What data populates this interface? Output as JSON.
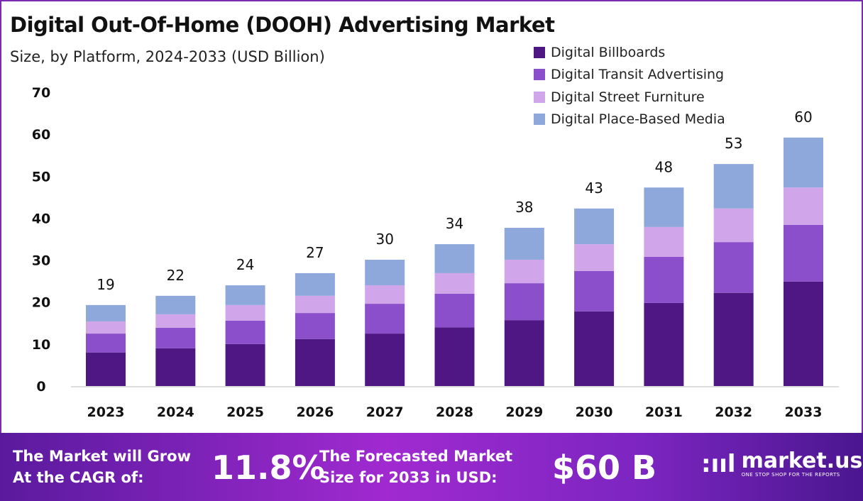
{
  "chart_data": {
    "type": "bar",
    "stacked": true,
    "title": "Digital Out-Of-Home (DOOH) Advertising Market",
    "subtitle": "Size, by Platform, 2024-2033 (USD Billion)",
    "categories": [
      "2023",
      "2024",
      "2025",
      "2026",
      "2027",
      "2028",
      "2029",
      "2030",
      "2031",
      "2032",
      "2033"
    ],
    "series": [
      {
        "name": "Digital Billboards",
        "color": "#4f1784",
        "values": [
          8.0,
          9.0,
          10.0,
          11.2,
          12.5,
          14.0,
          15.7,
          17.8,
          19.8,
          22.2,
          24.9
        ]
      },
      {
        "name": "Digital Transit Advertising",
        "color": "#8b4fcb",
        "values": [
          4.5,
          4.9,
          5.6,
          6.2,
          7.1,
          8.0,
          8.8,
          9.6,
          11.0,
          12.1,
          13.5
        ]
      },
      {
        "name": "Digital Street Furniture",
        "color": "#d0a5ea",
        "values": [
          2.9,
          3.2,
          3.7,
          4.1,
          4.4,
          4.9,
          5.6,
          6.4,
          7.1,
          8.0,
          8.9
        ]
      },
      {
        "name": "Digital Place-Based Media",
        "color": "#8ea8db",
        "values": [
          3.9,
          4.4,
          4.7,
          5.4,
          6.1,
          6.9,
          7.6,
          8.5,
          9.4,
          10.6,
          11.9
        ]
      }
    ],
    "totals": [
      "19",
      "22",
      "24",
      "27",
      "30",
      "34",
      "38",
      "43",
      "48",
      "53",
      "60"
    ],
    "ylim": [
      0,
      70
    ],
    "yticks": [
      "0",
      "10",
      "20",
      "30",
      "40",
      "50",
      "60",
      "70"
    ],
    "grid": false,
    "legend": "top-right"
  },
  "footer": {
    "cagr_label_1": "The Market will Grow",
    "cagr_label_2": "At the CAGR of:",
    "cagr_value": "11.8%",
    "forecast_label_1": "The Forecasted Market",
    "forecast_label_2": "Size for 2033 in USD:",
    "forecast_value": "$60 B",
    "logo_name": "market.us",
    "logo_tagline": "ONE STOP SHOP FOR THE REPORTS"
  }
}
